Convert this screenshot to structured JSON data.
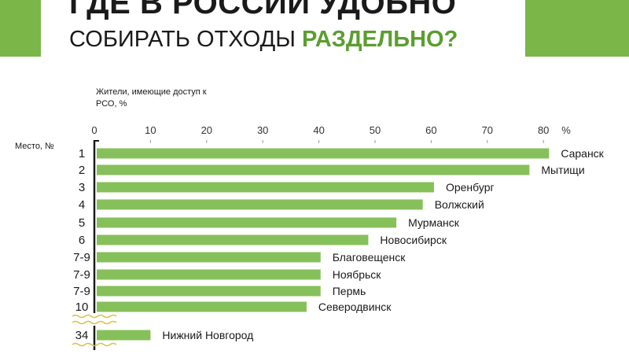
{
  "header": {
    "title_line1": "ГДЕ В РОССИИ УДОБНО",
    "title_line2_main": "СОБИРАТЬ ОТХОДЫ",
    "title_line2_accent": "РАЗДЕЛЬНО?"
  },
  "colors": {
    "accent_green": "#7ab648",
    "bar_green": "#86c05a",
    "text": "#1a1a1a"
  },
  "chart_data": {
    "type": "bar",
    "orientation": "horizontal",
    "xlabel": "Жители, имеющие доступ к РСО, %",
    "ylabel": "Место, №",
    "x_unit_label": "%",
    "xlim": [
      0,
      80
    ],
    "x_ticks": [
      0,
      10,
      20,
      30,
      40,
      50,
      60,
      70,
      80
    ],
    "grid": false,
    "axis_break_after_index": 9,
    "bars": [
      {
        "rank": "1",
        "city": "Саранск",
        "value": 81
      },
      {
        "rank": "2",
        "city": "Мытищи",
        "value": 77.5
      },
      {
        "rank": "3",
        "city": "Оренбург",
        "value": 60.5
      },
      {
        "rank": "4",
        "city": "Волжский",
        "value": 58.5
      },
      {
        "rank": "5",
        "city": "Мурманск",
        "value": 53.8
      },
      {
        "rank": "6",
        "city": "Новосибирск",
        "value": 48.8
      },
      {
        "rank": "7-9",
        "city": "Благовещенск",
        "value": 40.3
      },
      {
        "rank": "7-9",
        "city": "Ноябрьск",
        "value": 40.3
      },
      {
        "rank": "7-9",
        "city": "Пермь",
        "value": 40.3
      },
      {
        "rank": "10",
        "city": "Северодвинск",
        "value": 37.8
      },
      {
        "rank": "34",
        "city": "Нижний Новгород",
        "value": 10
      }
    ]
  }
}
